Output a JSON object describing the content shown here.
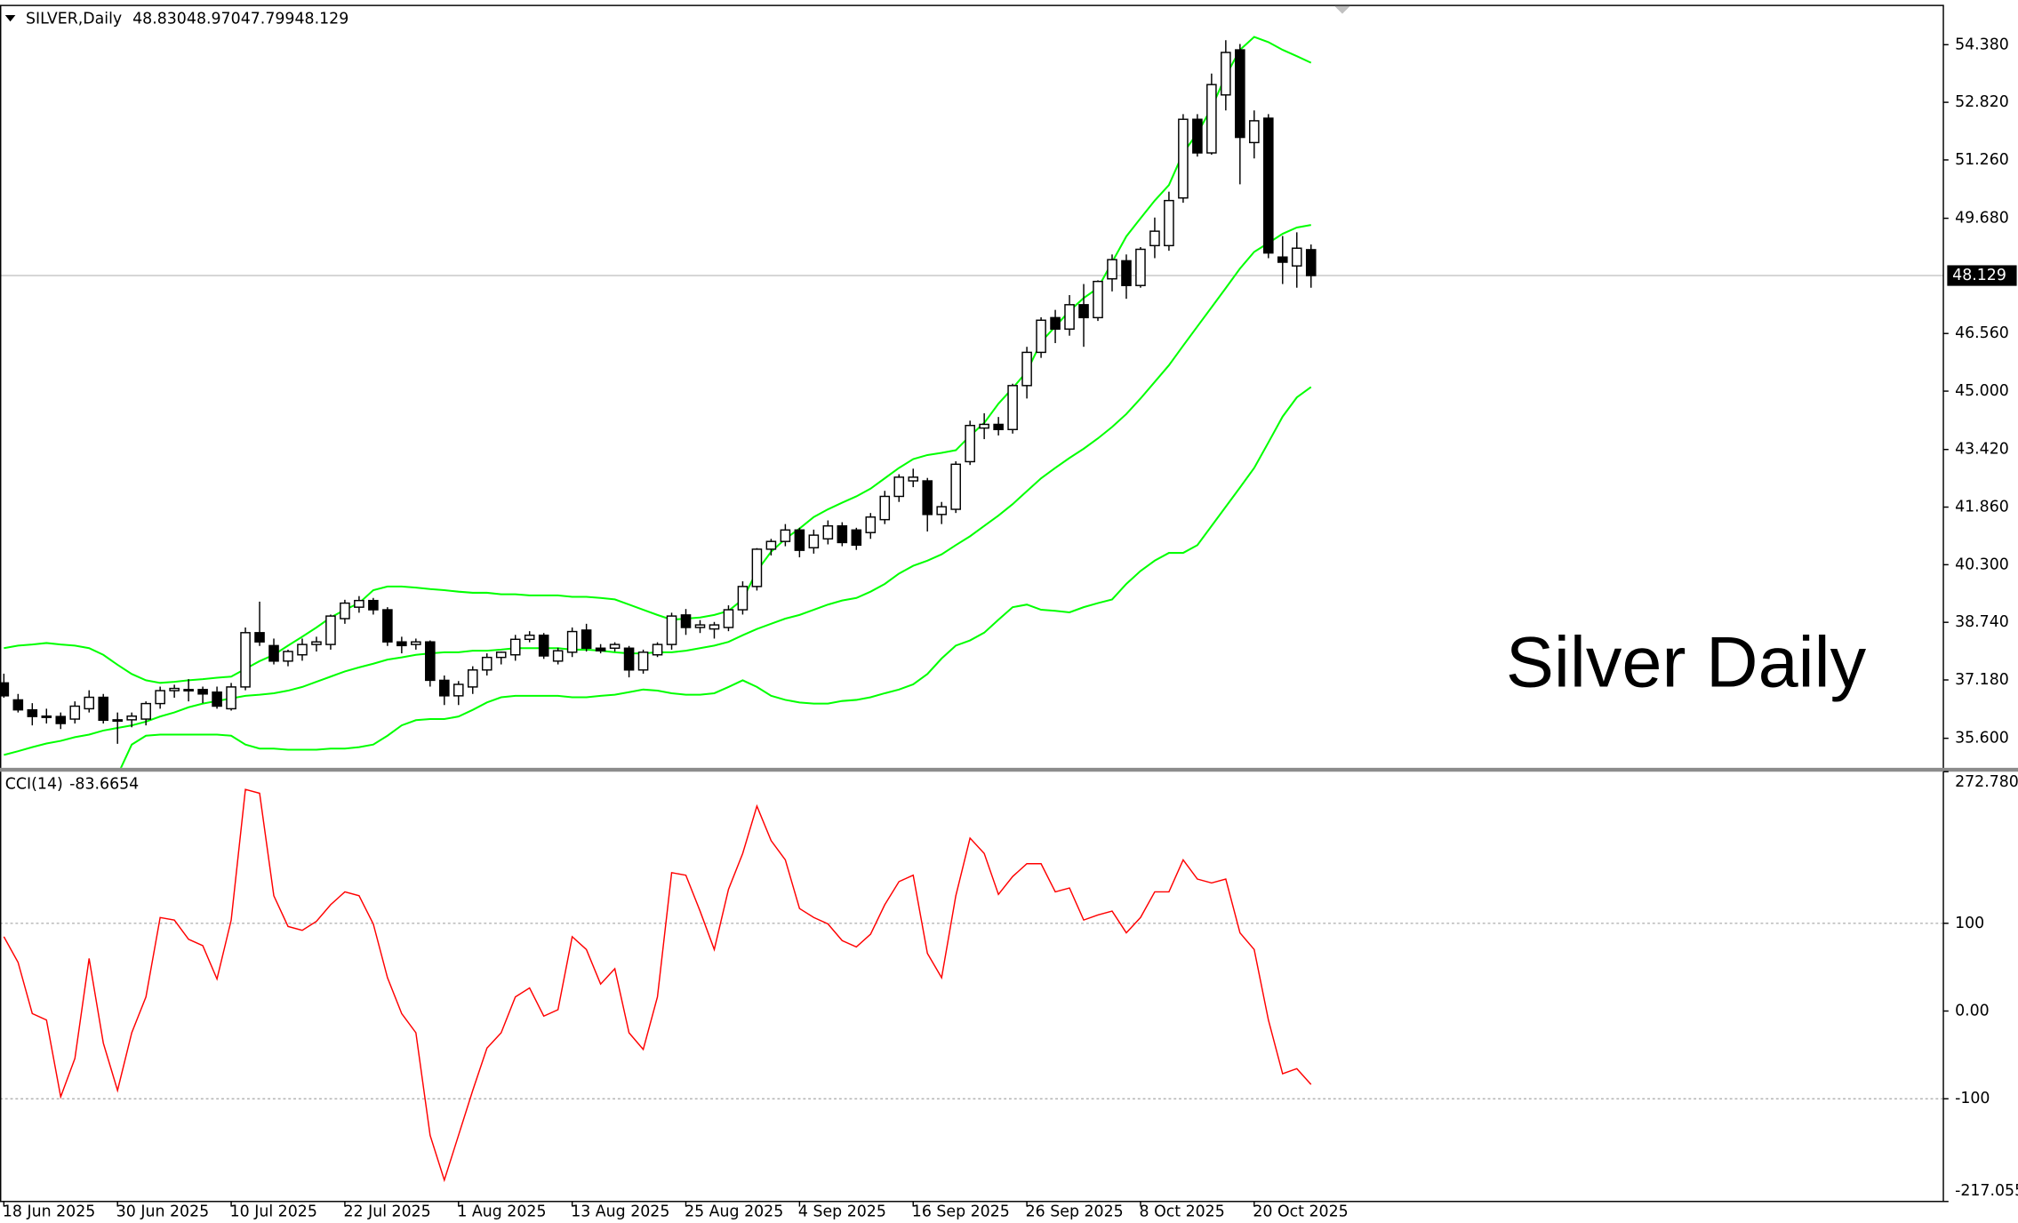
{
  "chart_data": [
    {
      "type": "candlestick",
      "title": "SILVER,Daily",
      "ohlc_labels": [
        "48.830",
        "48.970",
        "47.799",
        "48.129"
      ],
      "annotation": "Silver Daily",
      "categories": [
        "18 Jun 2025",
        null,
        null,
        null,
        null,
        null,
        null,
        null,
        "30 Jun 2025",
        null,
        null,
        null,
        null,
        null,
        null,
        null,
        "10 Jul 2025",
        null,
        null,
        null,
        null,
        null,
        null,
        null,
        "22 Jul 2025",
        null,
        null,
        null,
        null,
        null,
        null,
        null,
        "1 Aug 2025",
        null,
        null,
        null,
        null,
        null,
        null,
        null,
        "13 Aug 2025",
        null,
        null,
        null,
        null,
        null,
        null,
        null,
        "25 Aug 2025",
        null,
        null,
        null,
        null,
        null,
        null,
        null,
        "4 Sep 2025",
        null,
        null,
        null,
        null,
        null,
        null,
        null,
        "16 Sep 2025",
        null,
        null,
        null,
        null,
        null,
        null,
        null,
        "26 Sep 2025",
        null,
        null,
        null,
        null,
        null,
        null,
        null,
        "8 Oct 2025",
        null,
        null,
        null,
        null,
        null,
        null,
        null,
        "20 Oct 2025",
        null,
        null,
        null,
        null
      ],
      "open": [
        37.1,
        36.64,
        36.37,
        36.19,
        36.19,
        36.12,
        36.4,
        36.71,
        36.09,
        36.1,
        36.12,
        36.54,
        36.89,
        36.9,
        36.92,
        36.85,
        36.4,
        36.99,
        38.46,
        38.11,
        37.69,
        37.86,
        38.14,
        38.14,
        38.84,
        39.15,
        39.33,
        39.08,
        38.21,
        38.14,
        38.21,
        37.17,
        36.75,
        36.99,
        37.45,
        37.79,
        37.86,
        38.28,
        38.39,
        37.69,
        37.93,
        38.53,
        38.04,
        38.04,
        38.04,
        37.45,
        37.86,
        38.14,
        38.94,
        38.6,
        38.56,
        38.6,
        39.08,
        39.71,
        40.72,
        40.93,
        41.24,
        40.76,
        41.0,
        41.35,
        41.24,
        41.17,
        41.52,
        42.15,
        42.57,
        42.57,
        41.66,
        41.8,
        43.09,
        44.0,
        44.1,
        43.96,
        45.15,
        46.05,
        46.99,
        46.68,
        47.34,
        46.99,
        48.04,
        48.53,
        47.86,
        48.94,
        48.94,
        50.23,
        52.36,
        51.45,
        53.02,
        54.24,
        51.73,
        52.39,
        48.63,
        48.39,
        48.83
      ],
      "high": [
        37.35,
        36.8,
        36.55,
        36.4,
        36.3,
        36.6,
        36.9,
        36.8,
        36.3,
        36.3,
        36.6,
        37.0,
        37.05,
        37.2,
        37.0,
        37.0,
        37.1,
        38.6,
        39.3,
        38.3,
        38.0,
        38.3,
        38.35,
        38.95,
        39.35,
        39.45,
        39.4,
        39.15,
        38.35,
        38.3,
        38.25,
        37.3,
        37.15,
        37.55,
        37.9,
        37.95,
        38.4,
        38.5,
        38.45,
        38.05,
        38.6,
        38.7,
        38.15,
        38.2,
        38.1,
        38.0,
        38.2,
        39.0,
        39.1,
        38.8,
        38.75,
        39.2,
        39.85,
        40.75,
        41.0,
        41.4,
        41.3,
        41.25,
        41.5,
        41.45,
        41.3,
        41.7,
        42.3,
        42.75,
        42.9,
        42.65,
        42.0,
        43.1,
        44.2,
        44.4,
        44.3,
        45.2,
        46.2,
        47.0,
        47.2,
        47.6,
        47.9,
        48.0,
        48.7,
        48.7,
        48.9,
        49.7,
        50.4,
        52.5,
        52.5,
        53.6,
        54.5,
        54.4,
        52.6,
        52.5,
        49.2,
        49.3,
        48.97
      ],
      "low": [
        36.7,
        36.3,
        35.95,
        36.0,
        35.85,
        36.0,
        36.3,
        36.0,
        35.45,
        35.9,
        35.95,
        36.4,
        36.7,
        36.6,
        36.55,
        36.4,
        36.35,
        36.9,
        38.1,
        37.6,
        37.55,
        37.7,
        37.95,
        38.0,
        38.7,
        39.0,
        38.95,
        38.1,
        37.9,
        38.0,
        37.0,
        36.5,
        36.5,
        36.8,
        37.3,
        37.6,
        37.7,
        38.2,
        37.75,
        37.6,
        37.8,
        37.95,
        37.9,
        37.95,
        37.25,
        37.35,
        37.8,
        38.0,
        38.4,
        38.45,
        38.3,
        38.5,
        38.95,
        39.6,
        40.55,
        40.8,
        40.5,
        40.6,
        40.85,
        40.8,
        40.7,
        41.0,
        41.4,
        42.0,
        42.4,
        41.2,
        41.4,
        41.7,
        43.0,
        43.7,
        43.8,
        43.85,
        44.8,
        45.9,
        46.3,
        46.5,
        46.2,
        46.9,
        47.7,
        47.5,
        47.8,
        48.6,
        48.8,
        50.1,
        51.35,
        51.4,
        52.6,
        50.6,
        51.3,
        48.6,
        47.9,
        47.8,
        47.799
      ],
      "close": [
        36.75,
        36.37,
        36.19,
        36.2,
        36.0,
        36.47,
        36.71,
        36.09,
        36.1,
        36.2,
        36.54,
        36.89,
        36.95,
        36.92,
        36.8,
        36.47,
        36.99,
        38.46,
        38.21,
        37.69,
        37.95,
        38.14,
        38.21,
        38.91,
        39.26,
        39.33,
        39.08,
        38.21,
        38.11,
        38.21,
        37.17,
        36.75,
        37.06,
        37.45,
        37.79,
        37.93,
        38.28,
        38.39,
        37.83,
        37.97,
        38.49,
        38.04,
        37.97,
        38.14,
        37.45,
        37.93,
        38.14,
        38.91,
        38.6,
        38.67,
        38.67,
        39.08,
        39.71,
        40.72,
        40.93,
        41.24,
        40.69,
        41.1,
        41.35,
        40.9,
        40.83,
        41.59,
        42.15,
        42.67,
        42.67,
        41.66,
        41.87,
        43.02,
        44.07,
        44.1,
        43.96,
        45.15,
        46.05,
        46.92,
        46.68,
        47.34,
        46.99,
        47.97,
        48.56,
        47.86,
        48.84,
        49.33,
        50.16,
        52.36,
        51.45,
        53.3,
        54.17,
        51.87,
        52.32,
        48.74,
        48.49,
        48.87,
        48.129
      ],
      "up_color": "#ffffff",
      "down_color": "#000000",
      "wick_color": "#000000",
      "bands": {
        "color": "#00ff00",
        "upper": [
          38.04,
          38.11,
          38.14,
          38.18,
          38.14,
          38.11,
          38.04,
          37.86,
          37.59,
          37.34,
          37.17,
          37.1,
          37.13,
          37.17,
          37.2,
          37.24,
          37.27,
          37.48,
          37.69,
          37.86,
          38.11,
          38.35,
          38.6,
          38.87,
          39.08,
          39.26,
          39.61,
          39.71,
          39.71,
          39.68,
          39.64,
          39.61,
          39.57,
          39.54,
          39.54,
          39.5,
          39.5,
          39.47,
          39.47,
          39.47,
          39.43,
          39.43,
          39.4,
          39.36,
          39.22,
          39.08,
          38.94,
          38.81,
          38.84,
          38.87,
          38.94,
          39.05,
          39.36,
          40.13,
          40.65,
          41.0,
          41.28,
          41.59,
          41.8,
          41.98,
          42.15,
          42.36,
          42.64,
          42.92,
          43.16,
          43.27,
          43.33,
          43.4,
          43.79,
          44.14,
          44.66,
          45.08,
          45.53,
          46.33,
          46.75,
          47.17,
          47.52,
          47.79,
          48.49,
          49.19,
          49.68,
          50.16,
          50.58,
          51.45,
          51.98,
          52.67,
          53.54,
          54.24,
          54.59,
          54.45,
          54.24,
          54.07,
          53.89
        ],
        "middle": [
          35.15,
          35.25,
          35.36,
          35.46,
          35.53,
          35.63,
          35.7,
          35.81,
          35.88,
          35.95,
          36.05,
          36.19,
          36.3,
          36.44,
          36.54,
          36.61,
          36.68,
          36.75,
          36.78,
          36.82,
          36.89,
          36.99,
          37.13,
          37.27,
          37.41,
          37.52,
          37.62,
          37.73,
          37.79,
          37.86,
          37.9,
          37.93,
          37.93,
          37.97,
          37.97,
          38.0,
          38.04,
          38.04,
          38.04,
          38.04,
          38.0,
          38.0,
          37.97,
          37.93,
          37.9,
          37.9,
          37.93,
          37.93,
          37.97,
          38.04,
          38.11,
          38.21,
          38.39,
          38.56,
          38.7,
          38.84,
          38.94,
          39.08,
          39.22,
          39.33,
          39.4,
          39.57,
          39.78,
          40.06,
          40.27,
          40.41,
          40.58,
          40.83,
          41.07,
          41.35,
          41.63,
          41.94,
          42.29,
          42.64,
          42.92,
          43.19,
          43.44,
          43.72,
          44.03,
          44.38,
          44.8,
          45.25,
          45.7,
          46.23,
          46.75,
          47.27,
          47.79,
          48.32,
          48.77,
          49.01,
          49.26,
          49.43,
          49.5
        ],
        "lower": [
          32.26,
          32.39,
          32.58,
          32.74,
          32.92,
          33.15,
          33.4,
          33.9,
          34.6,
          35.43,
          35.67,
          35.7,
          35.7,
          35.7,
          35.7,
          35.7,
          35.67,
          35.43,
          35.32,
          35.32,
          35.29,
          35.29,
          35.29,
          35.32,
          35.32,
          35.36,
          35.43,
          35.67,
          35.95,
          36.09,
          36.12,
          36.12,
          36.19,
          36.37,
          36.57,
          36.71,
          36.75,
          36.75,
          36.75,
          36.75,
          36.71,
          36.71,
          36.75,
          36.78,
          36.85,
          36.92,
          36.89,
          36.82,
          36.78,
          36.78,
          36.82,
          36.99,
          37.17,
          36.99,
          36.75,
          36.64,
          36.57,
          36.54,
          36.54,
          36.61,
          36.64,
          36.71,
          36.82,
          36.92,
          37.06,
          37.34,
          37.76,
          38.11,
          38.25,
          38.46,
          38.81,
          39.15,
          39.22,
          39.08,
          39.05,
          39.01,
          39.15,
          39.26,
          39.36,
          39.78,
          40.13,
          40.41,
          40.62,
          40.62,
          40.83,
          41.35,
          41.87,
          42.39,
          42.92,
          43.61,
          44.31,
          44.83,
          45.11
        ]
      },
      "last_price": 48.129,
      "ylim": [
        34.8,
        55.46
      ],
      "yticks": [
        {
          "value": 54.38,
          "label": "54.380"
        },
        {
          "value": 52.82,
          "label": "52.820"
        },
        {
          "value": 51.26,
          "label": "51.260"
        },
        {
          "value": 49.68,
          "label": "49.680"
        },
        {
          "value": 46.56,
          "label": "46.560"
        },
        {
          "value": 45.0,
          "label": "45.000"
        },
        {
          "value": 43.42,
          "label": "43.420"
        },
        {
          "value": 41.86,
          "label": "41.860"
        },
        {
          "value": 40.3,
          "label": "40.300"
        },
        {
          "value": 38.74,
          "label": "38.740"
        },
        {
          "value": 37.18,
          "label": "37.180"
        },
        {
          "value": 35.6,
          "label": "35.600"
        }
      ]
    },
    {
      "type": "line",
      "title": "CCI(14)",
      "color": "#ff0000",
      "values": [
        84.7,
        55.5,
        -2.9,
        -10.2,
        -97.8,
        -54.0,
        59.9,
        -36.5,
        -90.5,
        -24.8,
        16.1,
        106.6,
        103.7,
        81.8,
        74.5,
        36.5,
        103.7,
        252.6,
        248.2,
        131.4,
        96.4,
        92.0,
        102.2,
        121.2,
        135.8,
        131.4,
        99.3,
        38.0,
        -2.9,
        -24.8,
        -141.6,
        -192.7,
        -141.6,
        -90.5,
        -42.3,
        -24.8,
        16.1,
        26.3,
        -5.8,
        1.5,
        84.7,
        70.1,
        30.7,
        48.2,
        -24.8,
        -43.8,
        16.1,
        157.7,
        154.8,
        113.9,
        70.1,
        138.7,
        179.6,
        233.6,
        194.2,
        172.3,
        116.8,
        106.6,
        99.3,
        80.3,
        73.0,
        87.6,
        121.2,
        147.5,
        154.8,
        65.7,
        38.0,
        131.4,
        197.1,
        179.6,
        132.9,
        153.3,
        167.9,
        167.9,
        135.8,
        140.2,
        103.7,
        109.5,
        113.9,
        89.1,
        106.6,
        135.8,
        135.8,
        172.3,
        150.4,
        146.0,
        150.4,
        89.1,
        70.1,
        -10.2,
        -71.5,
        -65.7,
        -83.6654
      ],
      "levels": [
        100,
        -100
      ],
      "ylim": [
        -217.055,
        272.7801
      ],
      "yticks": [
        272.7801,
        100,
        {
          "value": 0,
          "label": "0.00"
        },
        -100,
        -217.055
      ]
    }
  ]
}
